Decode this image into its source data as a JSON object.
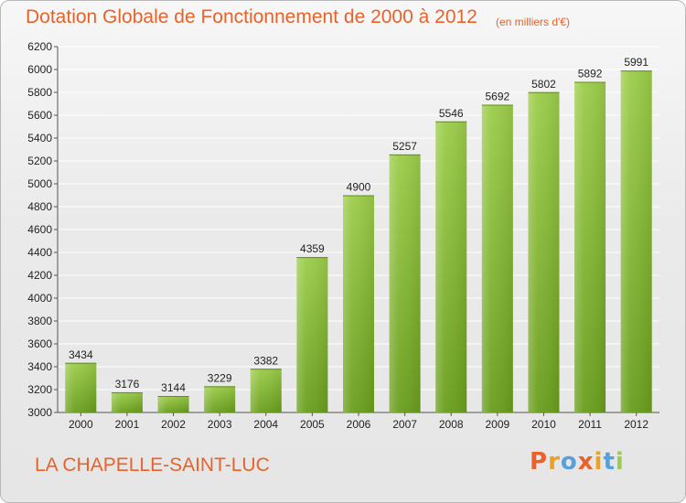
{
  "header": {
    "title": "Dotation Globale de Fonctionnement de 2000 à 2012",
    "subtitle": "(en milliers d'€)"
  },
  "footer": {
    "commune": "LA CHAPELLE-SAINT-LUC",
    "logo": "Proxiti"
  },
  "colors": {
    "title": "#e8622a",
    "bar_top": "#9ccd4a",
    "bar_bottom": "#6a9e1d",
    "grid": "#ffffff",
    "logo_letters": [
      "#e8622a",
      "#f0a020",
      "#5aa0d8",
      "#e8622a",
      "#f0a020",
      "#5aa0d8",
      "#9ccd4a"
    ]
  },
  "chart_data": {
    "type": "bar",
    "title": "Dotation Globale de Fonctionnement de 2000 à 2012",
    "subtitle": "(en milliers d'€)",
    "categories": [
      "2000",
      "2001",
      "2002",
      "2003",
      "2004",
      "2005",
      "2006",
      "2007",
      "2008",
      "2009",
      "2010",
      "2011",
      "2012"
    ],
    "values": [
      3434,
      3176,
      3144,
      3229,
      3382,
      4359,
      4900,
      5257,
      5546,
      5692,
      5802,
      5892,
      5991
    ],
    "ylim": [
      3000,
      6200
    ],
    "yticks": [
      3000,
      3200,
      3400,
      3600,
      3800,
      4000,
      4200,
      4400,
      4600,
      4800,
      5000,
      5200,
      5400,
      5600,
      5800,
      6000,
      6200
    ],
    "grid": true,
    "legend": "none"
  }
}
